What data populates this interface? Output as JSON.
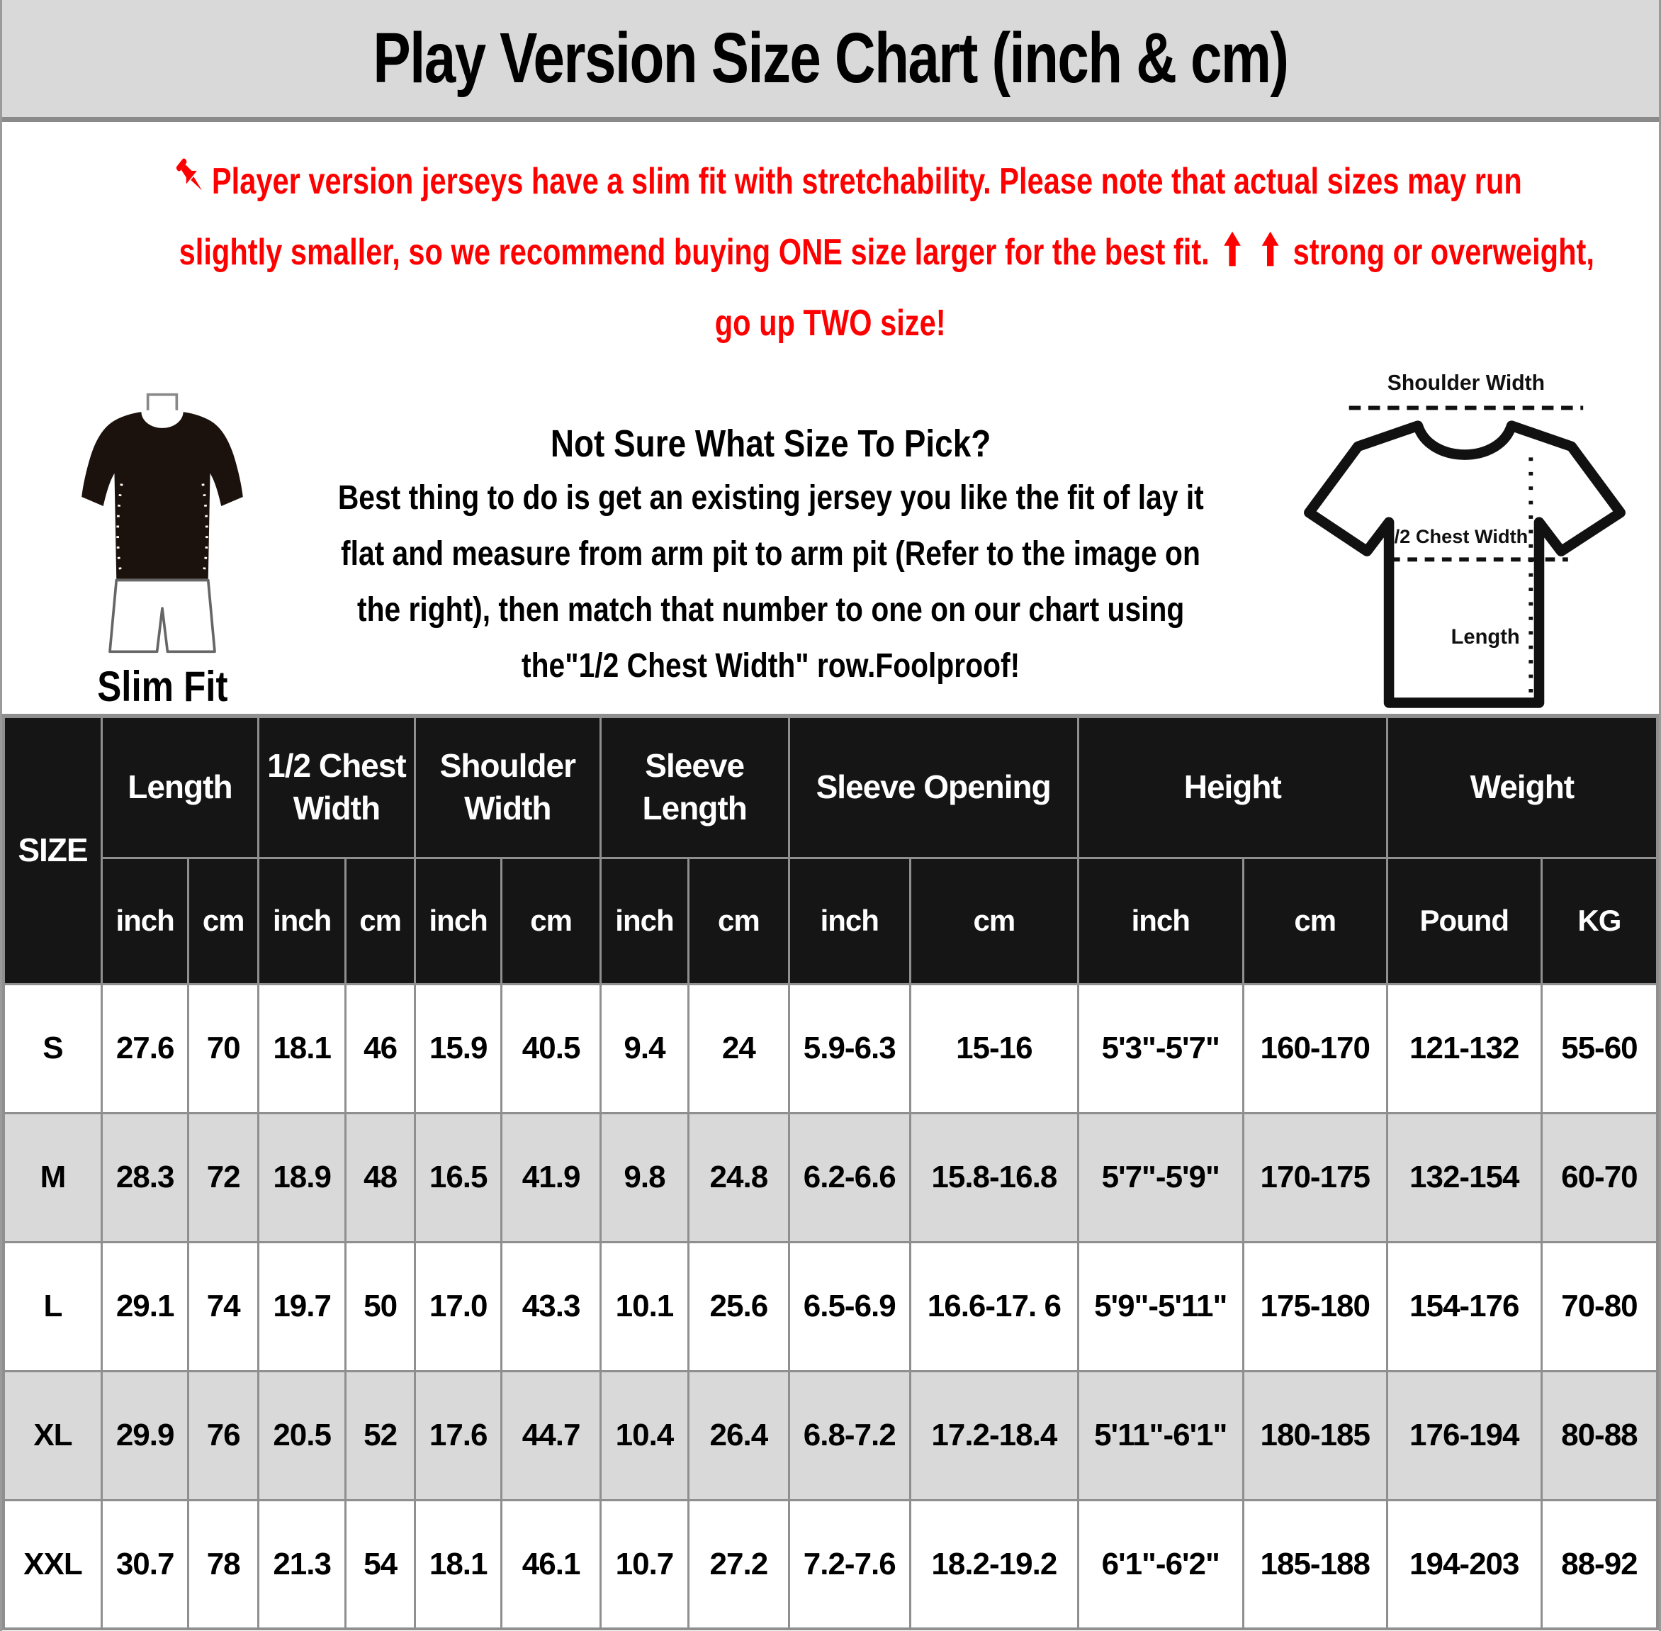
{
  "title": "Play Version Size Chart (inch & cm)",
  "note": {
    "line1": "Player version jerseys have a slim fit with stretchability. Please note that actual sizes may run",
    "line2_pre": "slightly smaller, so we recommend buying ONE size larger for the best fit.",
    "line2_post": "strong or overweight,",
    "line3": "go up TWO size!"
  },
  "fit_label": "Slim Fit",
  "guide": {
    "heading": "Not Sure What Size To Pick?",
    "body_lines": [
      "Best thing to do is get an existing jersey you like the fit of lay it",
      "flat and measure from arm pit to arm pit (Refer to the image on",
      "the right), then match that number to one on our chart using",
      "the\"1/2 Chest Width\" row.Foolproof!"
    ]
  },
  "diagram": {
    "shoulder_width": "Shoulder Width",
    "half_chest": "1/2 Chest Width",
    "length": "Length"
  },
  "table": {
    "size_header": "SIZE",
    "groups": [
      {
        "label": "Length",
        "units": [
          "inch",
          "cm"
        ]
      },
      {
        "label": "1/2 Chest Width",
        "units": [
          "inch",
          "cm"
        ]
      },
      {
        "label": "Shoulder Width",
        "units": [
          "inch",
          "cm"
        ]
      },
      {
        "label": "Sleeve Length",
        "units": [
          "inch",
          "cm"
        ]
      },
      {
        "label": "Sleeve Opening",
        "units": [
          "inch",
          "cm"
        ]
      },
      {
        "label": "Height",
        "units": [
          "inch",
          "cm"
        ]
      },
      {
        "label": "Weight",
        "units": [
          "Pound",
          "KG"
        ]
      }
    ],
    "rows": [
      {
        "size": "S",
        "values": [
          "27.6",
          "70",
          "18.1",
          "46",
          "15.9",
          "40.5",
          "9.4",
          "24",
          "5.9-6.3",
          "15-16",
          "5'3\"-5'7\"",
          "160-170",
          "121-132",
          "55-60"
        ]
      },
      {
        "size": "M",
        "values": [
          "28.3",
          "72",
          "18.9",
          "48",
          "16.5",
          "41.9",
          "9.8",
          "24.8",
          "6.2-6.6",
          "15.8-16.8",
          "5'7\"-5'9\"",
          "170-175",
          "132-154",
          "60-70"
        ]
      },
      {
        "size": "L",
        "values": [
          "29.1",
          "74",
          "19.7",
          "50",
          "17.0",
          "43.3",
          "10.1",
          "25.6",
          "6.5-6.9",
          "16.6-17. 6",
          "5'9\"-5'11\"",
          "175-180",
          "154-176",
          "70-80"
        ]
      },
      {
        "size": "XL",
        "values": [
          "29.9",
          "76",
          "20.5",
          "52",
          "17.6",
          "44.7",
          "10.4",
          "26.4",
          "6.8-7.2",
          "17.2-18.4",
          "5'11\"-6'1\"",
          "180-185",
          "176-194",
          "80-88"
        ]
      },
      {
        "size": "XXL",
        "values": [
          "30.7",
          "78",
          "21.3",
          "54",
          "18.1",
          "46.1",
          "10.7",
          "27.2",
          "7.2-7.6",
          "18.2-19.2",
          "6'1\"-6'2\"",
          "185-188",
          "194-203",
          "88-92"
        ]
      }
    ]
  },
  "colors": {
    "accent_red": "#fe0000",
    "title_bar_bg": "#d9d9d9",
    "table_header_bg": "#151515",
    "row_alt_bg": "#d9d9d9",
    "border_gray": "#8f8f8f"
  }
}
